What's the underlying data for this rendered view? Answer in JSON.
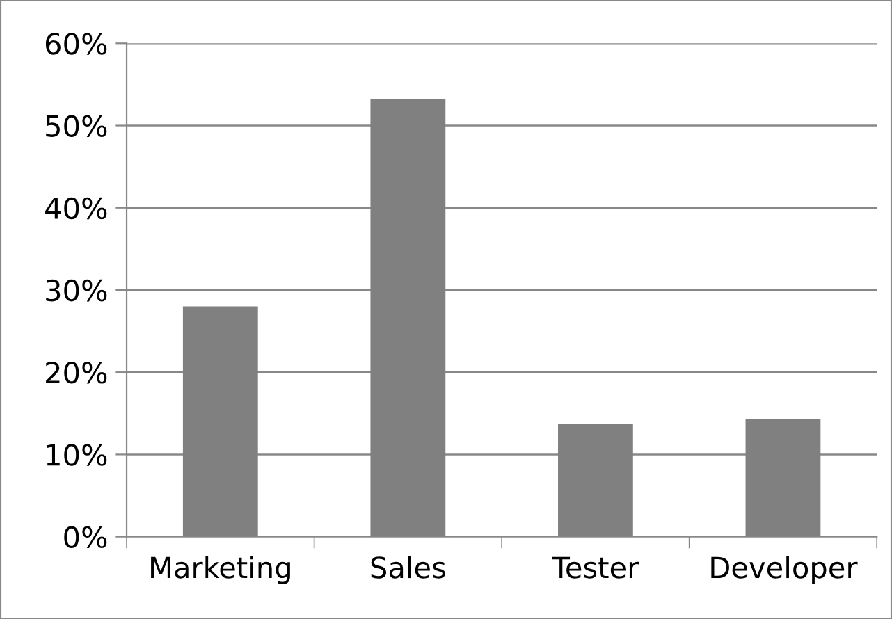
{
  "chart_data": {
    "type": "bar",
    "categories": [
      "Marketing",
      "Sales",
      "Tester",
      "Developer"
    ],
    "values": [
      28,
      53.2,
      13.7,
      14.3
    ],
    "color": "#808080",
    "ylim": [
      0,
      60
    ],
    "yticks": [
      {
        "value": 0,
        "label": "0%"
      },
      {
        "value": 10,
        "label": "10%"
      },
      {
        "value": 20,
        "label": "20%"
      },
      {
        "value": 30,
        "label": "30%"
      },
      {
        "value": 40,
        "label": "40%"
      },
      {
        "value": 50,
        "label": "50%"
      },
      {
        "value": 60,
        "label": "60%"
      }
    ],
    "grid": "y",
    "legend": false
  }
}
